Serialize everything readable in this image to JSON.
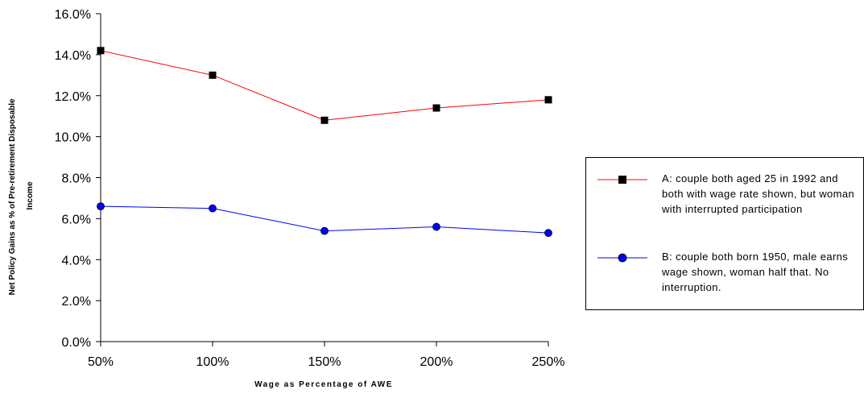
{
  "chart_data": {
    "type": "line",
    "xlabel": "Wage as Percentage of AWE",
    "ylabel": "Net Policy Gains as % of Pre-retirement Disposable Income",
    "categories": [
      "50%",
      "100%",
      "150%",
      "200%",
      "250%"
    ],
    "ylim": [
      0,
      16
    ],
    "yticks": [
      "0.0%",
      "2.0%",
      "4.0%",
      "6.0%",
      "8.0%",
      "10.0%",
      "12.0%",
      "14.0%",
      "16.0%"
    ],
    "grid": false,
    "legend_position": "right",
    "series": [
      {
        "name": "A:  couple both aged 25 in 1992 and both with wage rate shown, but woman with interrupted participation",
        "values": [
          14.2,
          13.0,
          10.8,
          11.4,
          11.8
        ],
        "color": "#ff0000",
        "marker": "square"
      },
      {
        "name": "B:  couple both born 1950, male earns wage shown, woman half that.  No interruption.",
        "values": [
          6.6,
          6.5,
          5.4,
          5.6,
          5.3
        ],
        "color": "#0000ff",
        "marker": "circle"
      }
    ]
  }
}
